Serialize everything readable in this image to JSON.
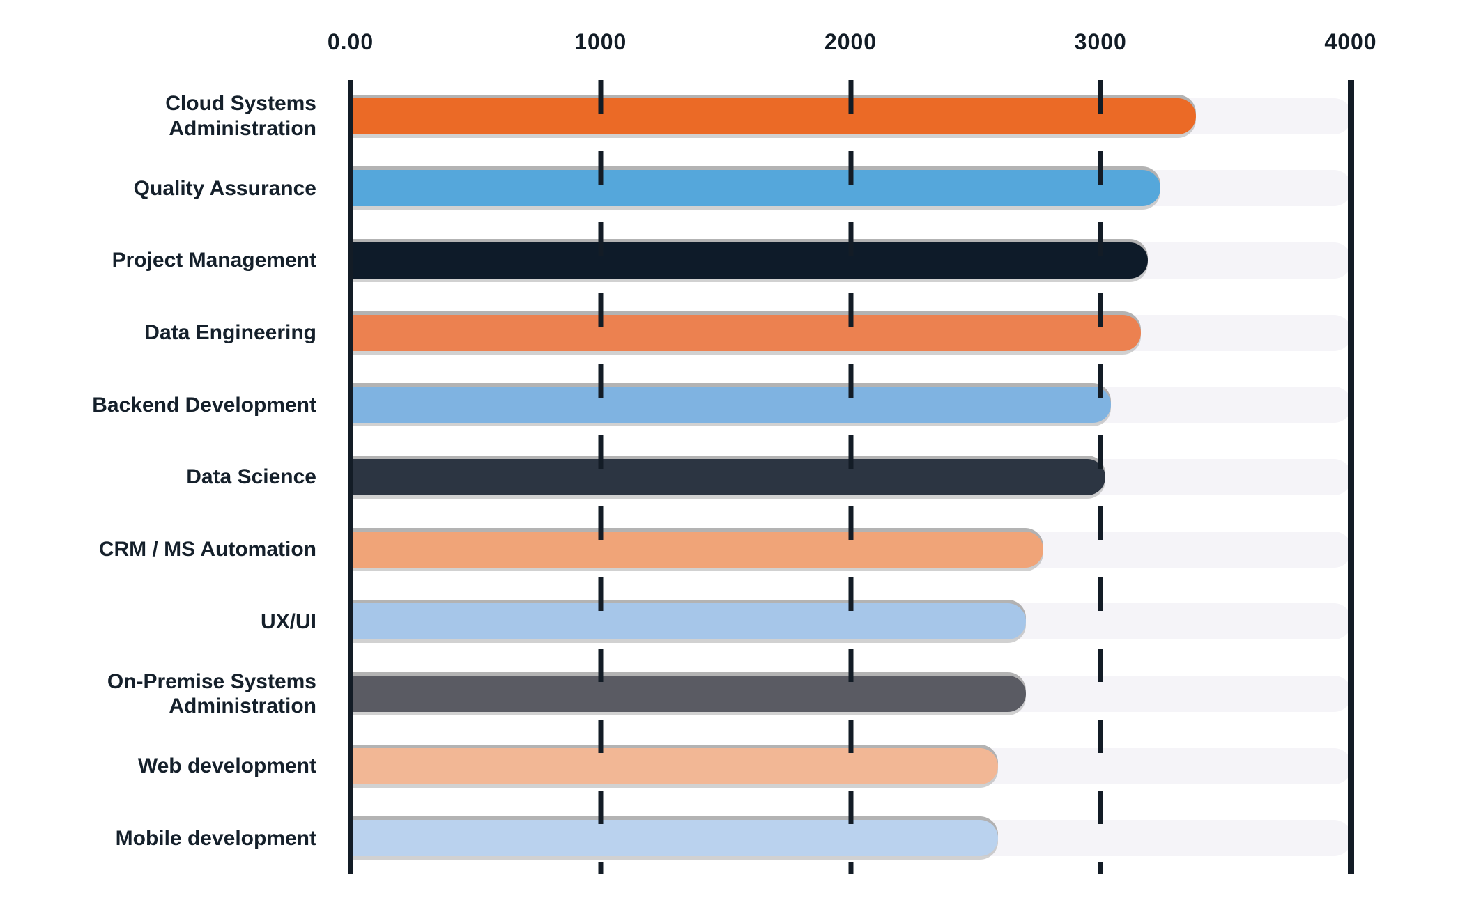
{
  "chart_data": {
    "type": "bar",
    "orientation": "horizontal",
    "title": "",
    "legend": "none",
    "categories": [
      "Cloud Systems Administration",
      "Quality Assurance",
      "Project Management",
      "Data Engineering",
      "Backend Development",
      "Data Science",
      "CRM / MS Automation",
      "UX/UI",
      "On-Premise Systems Administration",
      "Web development",
      "Mobile development"
    ],
    "values": [
      3380,
      3240,
      3190,
      3160,
      3040,
      3020,
      2770,
      2700,
      2700,
      2590,
      2590
    ],
    "bar_colors": [
      "#EB6A26",
      "#55A7DB",
      "#0E1B29",
      "#EC8150",
      "#7FB3E1",
      "#2C3542",
      "#F0A478",
      "#A6C6E9",
      "#5A5B63",
      "#F2B795",
      "#BAD2EE"
    ],
    "x_tick_labels": [
      "0.00",
      "1000",
      "2000",
      "3000",
      "4000"
    ],
    "x_tick_values": [
      0,
      1000,
      2000,
      3000,
      4000
    ],
    "xlim": [
      0,
      4000
    ],
    "grid": {
      "vertical_dashed_at": [
        1000,
        2000,
        3000
      ],
      "solid_axes_at": [
        0,
        4000
      ]
    },
    "track_color": "#F5F4F8",
    "axis_color": "#131C26",
    "text_color": "#15202B",
    "shadow_color": "#9A9A9A"
  }
}
